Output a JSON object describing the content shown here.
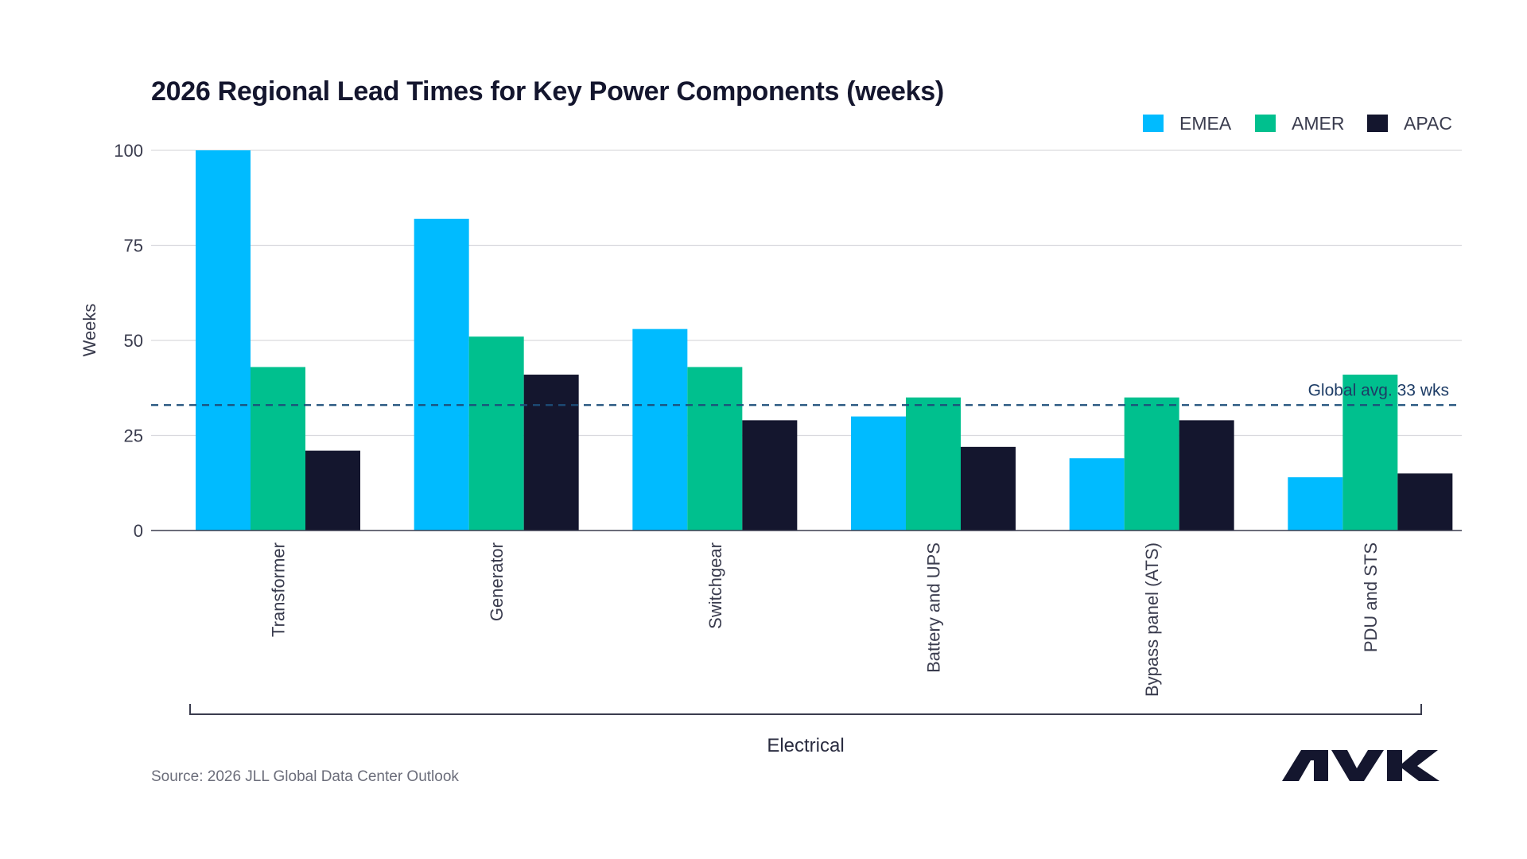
{
  "chart_data": {
    "type": "bar",
    "title": "2026 Regional Lead Times for Key Power Components (weeks)",
    "ylabel": "Weeks",
    "ylim": [
      0,
      100
    ],
    "yticks": [
      0,
      25,
      50,
      75,
      100
    ],
    "grid": true,
    "legend_placement": "top-right",
    "categories": [
      "Transformer",
      "Generator",
      "Switchgear",
      "Battery and UPS",
      "Bypass panel (ATS)",
      "PDU and STS"
    ],
    "category_group": "Electrical",
    "series": [
      {
        "name": "EMEA",
        "color": "#00bbff",
        "values": [
          100,
          82,
          53,
          30,
          19,
          14
        ]
      },
      {
        "name": "AMER",
        "color": "#00c08e",
        "values": [
          43,
          51,
          43,
          35,
          35,
          41
        ]
      },
      {
        "name": "APAC",
        "color": "#14162e",
        "values": [
          21,
          41,
          29,
          22,
          29,
          15
        ]
      }
    ],
    "reference_line": {
      "value": 33,
      "label": "Global avg. 33 wks",
      "color": "#1d4e79"
    },
    "source": "Source: 2026 JLL Global Data Center Outlook"
  },
  "logo": {
    "text": "AVK",
    "color": "#14162e"
  }
}
